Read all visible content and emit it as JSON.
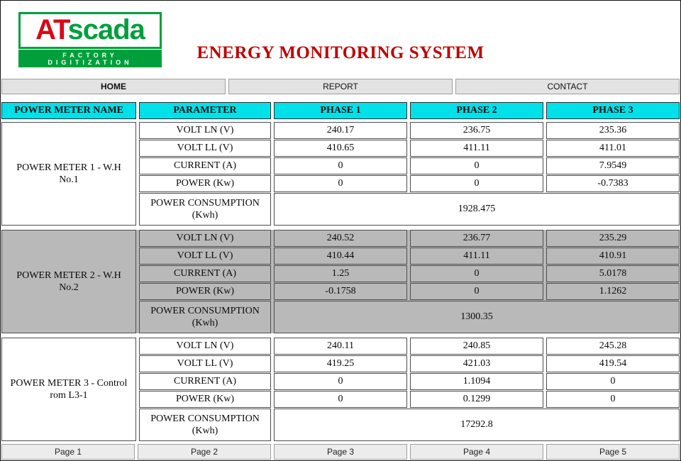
{
  "header": {
    "logo": {
      "text_red": "AT",
      "text_green": "scada",
      "subtitle": "FACTORY DIGITIZATION"
    },
    "title": "ENERGY MONITORING SYSTEM"
  },
  "nav": {
    "items": [
      {
        "label": "HOME"
      },
      {
        "label": "REPORT"
      },
      {
        "label": "CONTACT"
      }
    ]
  },
  "colors": {
    "header_cyan": "#00E1EA",
    "title_red": "#C00000",
    "logo_red": "#D90916",
    "logo_green": "#009F3C",
    "alt_section_gray": "#B9B9B9"
  },
  "table": {
    "headers": [
      "POWER METER NAME",
      "PARAMETER",
      "PHASE 1",
      "PHASE 2",
      "PHASE 3"
    ],
    "meters": [
      {
        "name": "POWER METER 1 - W.H No.1",
        "rows": [
          {
            "parameter": "VOLT LN (V)",
            "values": [
              "240.17",
              "236.75",
              "235.36"
            ]
          },
          {
            "parameter": "VOLT LL (V)",
            "values": [
              "410.65",
              "411.11",
              "411.01"
            ]
          },
          {
            "parameter": "CURRENT (A)",
            "values": [
              "0",
              "0",
              "7.9549"
            ]
          },
          {
            "parameter": "POWER (Kw)",
            "values": [
              "0",
              "0",
              "-0.7383"
            ]
          }
        ],
        "consumption_label": "POWER CONSUMPTION (Kwh)",
        "consumption_value": "1928.475"
      },
      {
        "name": "POWER METER 2 - W.H No.2",
        "rows": [
          {
            "parameter": "VOLT LN (V)",
            "values": [
              "240.52",
              "236.77",
              "235.29"
            ]
          },
          {
            "parameter": "VOLT LL (V)",
            "values": [
              "410.44",
              "411.11",
              "410.91"
            ]
          },
          {
            "parameter": "CURRENT (A)",
            "values": [
              "1.25",
              "0",
              "5.0178"
            ]
          },
          {
            "parameter": "POWER (Kw)",
            "values": [
              "-0.1758",
              "0",
              "1.1262"
            ]
          }
        ],
        "consumption_label": "POWER CONSUMPTION (Kwh)",
        "consumption_value": "1300.35"
      },
      {
        "name": "POWER METER 3 - Control rom L3-1",
        "rows": [
          {
            "parameter": "VOLT LN (V)",
            "values": [
              "240.11",
              "240.85",
              "245.28"
            ]
          },
          {
            "parameter": "VOLT LL (V)",
            "values": [
              "419.25",
              "421.03",
              "419.54"
            ]
          },
          {
            "parameter": "CURRENT (A)",
            "values": [
              "0",
              "1.1094",
              "0"
            ]
          },
          {
            "parameter": "POWER (Kw)",
            "values": [
              "0",
              "0.1299",
              "0"
            ]
          }
        ],
        "consumption_label": "POWER CONSUMPTION (Kwh)",
        "consumption_value": "17292.8"
      }
    ]
  },
  "pagination": {
    "items": [
      {
        "label": "Page 1"
      },
      {
        "label": "Page 2"
      },
      {
        "label": "Page 3"
      },
      {
        "label": "Page 4"
      },
      {
        "label": "Page 5"
      }
    ]
  }
}
